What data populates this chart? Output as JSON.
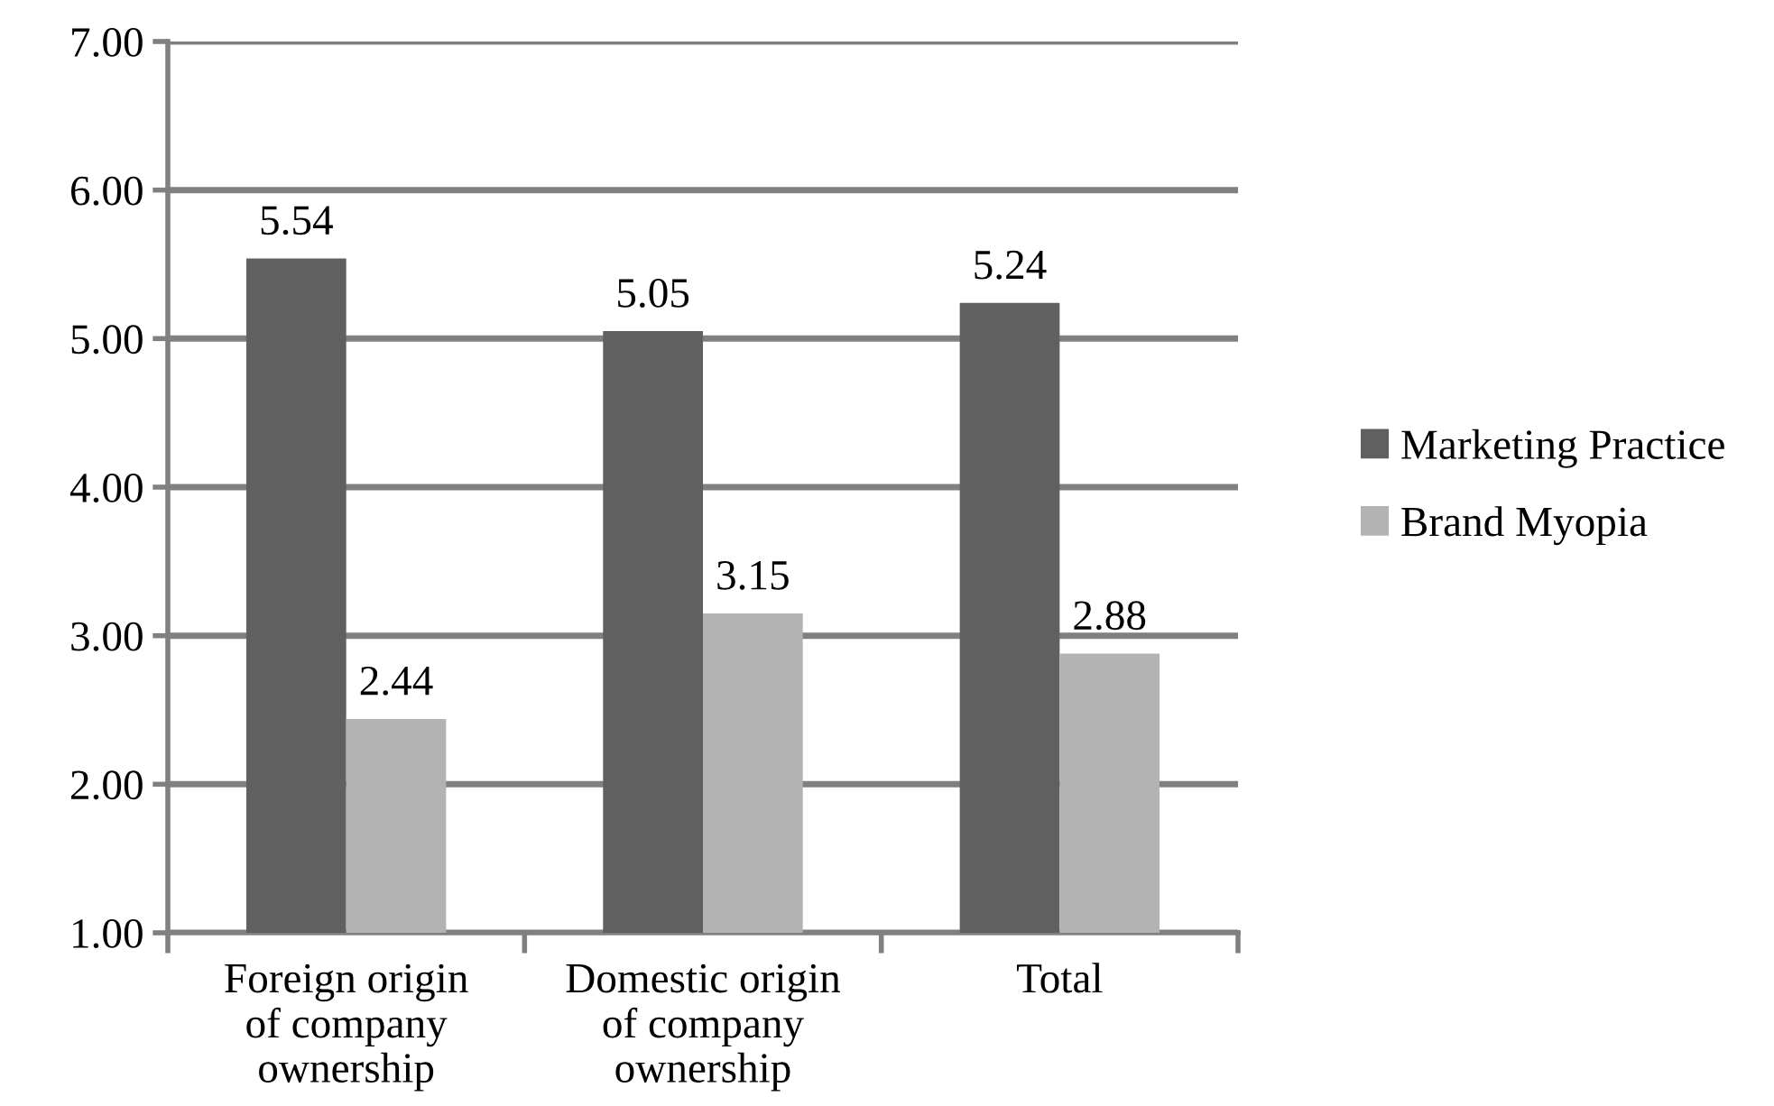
{
  "chart_data": {
    "type": "bar",
    "categories": [
      "Foreign origin\nof company\nownership",
      "Domestic origin\nof company\nownership",
      "Total"
    ],
    "series": [
      {
        "name": "Marketing Practice",
        "color": "#606060",
        "values": [
          5.54,
          5.05,
          5.24
        ]
      },
      {
        "name": "Brand Myopia",
        "color": "#b3b3b3",
        "values": [
          2.44,
          3.15,
          2.88
        ]
      }
    ],
    "ylim": [
      1,
      7
    ],
    "yticks": [
      {
        "value": 1,
        "label": "1.00"
      },
      {
        "value": 2,
        "label": "2.00"
      },
      {
        "value": 3,
        "label": "3.00"
      },
      {
        "value": 4,
        "label": "4.00"
      },
      {
        "value": 5,
        "label": "5.00"
      },
      {
        "value": 6,
        "label": "6.00"
      },
      {
        "value": 7,
        "label": "7.00"
      }
    ],
    "grid": "y",
    "legend": "right",
    "data_labels": true
  }
}
